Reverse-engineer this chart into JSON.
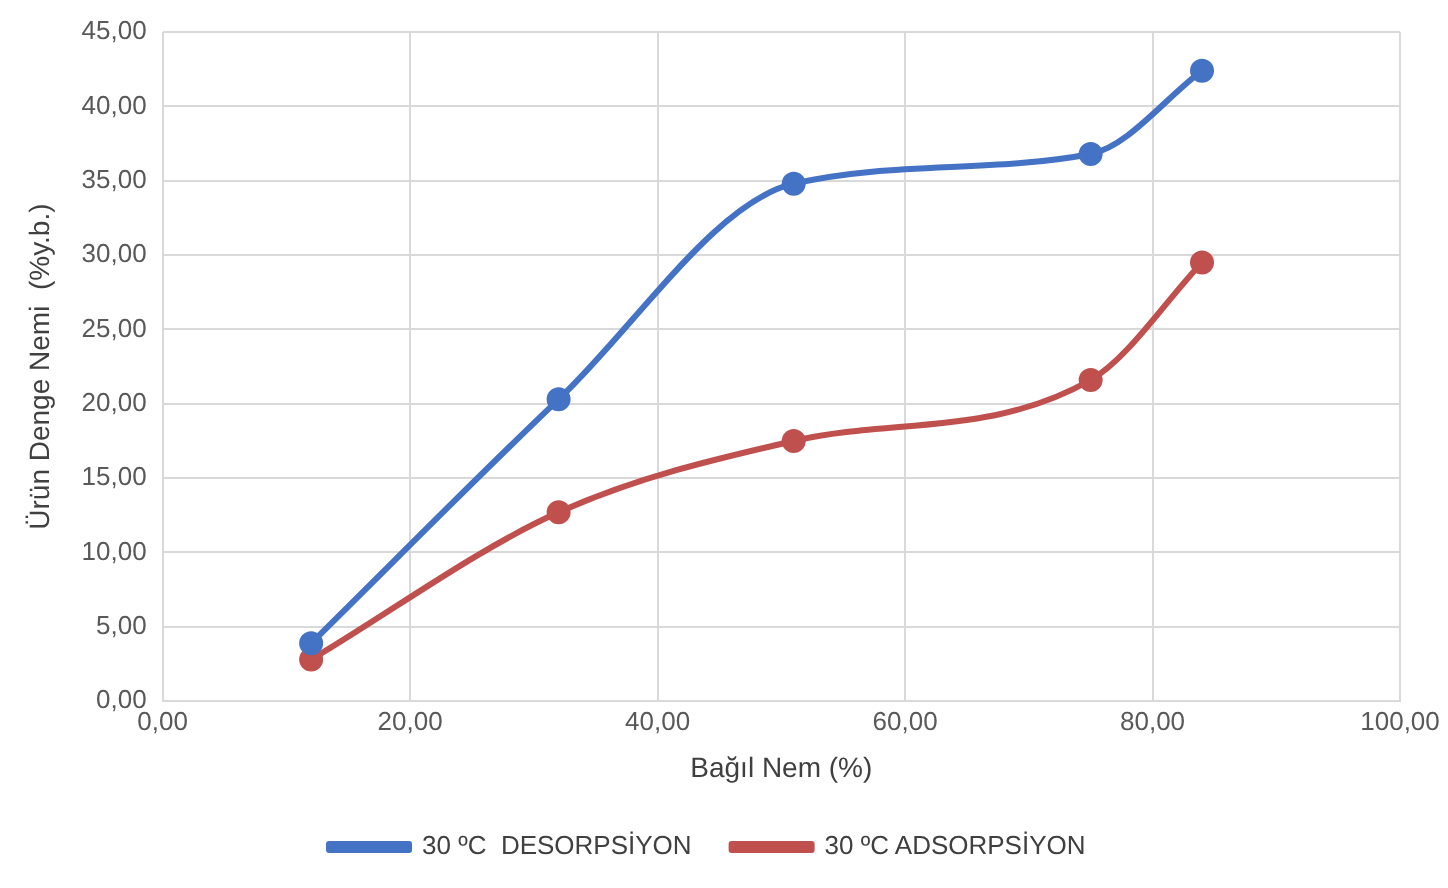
{
  "chart_data": {
    "type": "line",
    "xlabel": "Bağıl Nem (%)",
    "ylabel": "Ürün Denge Nemi  (%y.b.)",
    "xlim": [
      0,
      100
    ],
    "xticks": [
      {
        "value": 0,
        "label": "0,00"
      },
      {
        "value": 20,
        "label": "20,00"
      },
      {
        "value": 40,
        "label": "40,00"
      },
      {
        "value": 60,
        "label": "60,00"
      },
      {
        "value": 80,
        "label": "80,00"
      },
      {
        "value": 100,
        "label": "100,00"
      }
    ],
    "ylim": [
      0,
      45
    ],
    "yticks": [
      {
        "value": 0,
        "label": "0,00"
      },
      {
        "value": 5,
        "label": "5,00"
      },
      {
        "value": 10,
        "label": "10,00"
      },
      {
        "value": 15,
        "label": "15,00"
      },
      {
        "value": 20,
        "label": "20,00"
      },
      {
        "value": 25,
        "label": "25,00"
      },
      {
        "value": 30,
        "label": "30,00"
      },
      {
        "value": 35,
        "label": "35,00"
      },
      {
        "value": 40,
        "label": "40,00"
      },
      {
        "value": 45,
        "label": "45,00"
      }
    ],
    "x": [
      12,
      32,
      51,
      75,
      84
    ],
    "series": [
      {
        "name": "30 ºC  DESORPSİYON",
        "color": "#4472c4",
        "values": [
          3.9,
          20.3,
          34.8,
          36.8,
          42.4
        ]
      },
      {
        "name": "30 ºC ADSORPSİYON",
        "color": "#c0504d",
        "values": [
          2.8,
          12.7,
          17.5,
          21.6,
          29.5
        ]
      }
    ],
    "grid": true,
    "legend": "bottom",
    "marker": "circle",
    "line_style": "solid"
  }
}
